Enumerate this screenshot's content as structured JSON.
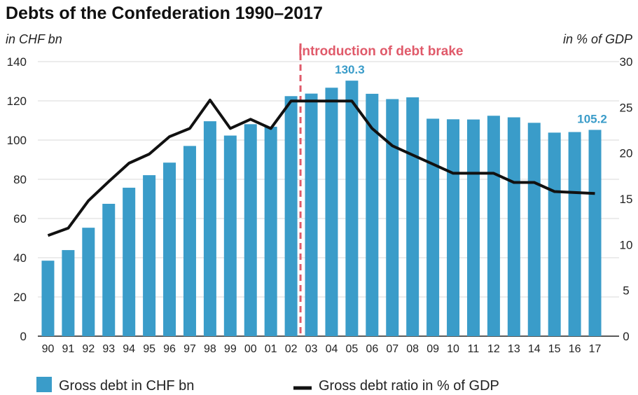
{
  "chart_data": {
    "type": "bar",
    "title": "Debts of the Confederation 1990–2017",
    "ylabel_left": "in CHF bn",
    "ylabel_right": "in % of GDP",
    "categories": [
      "90",
      "91",
      "92",
      "93",
      "94",
      "95",
      "96",
      "97",
      "98",
      "99",
      "00",
      "01",
      "02",
      "03",
      "04",
      "05",
      "06",
      "07",
      "08",
      "09",
      "10",
      "11",
      "12",
      "13",
      "14",
      "15",
      "16",
      "17"
    ],
    "ylim_left": [
      0,
      140
    ],
    "yticks_left": [
      "0",
      "20",
      "40",
      "60",
      "80",
      "100",
      "120",
      "140"
    ],
    "ylim_right": [
      0,
      30
    ],
    "yticks_right": [
      "0",
      "5",
      "10",
      "15",
      "20",
      "25",
      "30"
    ],
    "grid": true,
    "legend_position": "bottom",
    "series": [
      {
        "name": "Gross debt in CHF bn",
        "type": "bar",
        "axis": "left",
        "values": [
          38.5,
          43.9,
          55.3,
          67.5,
          75.7,
          82.1,
          88.5,
          97.0,
          109.6,
          102.3,
          108.1,
          106.8,
          122.4,
          123.7,
          126.7,
          130.3,
          123.6,
          120.9,
          121.8,
          110.9,
          110.6,
          110.5,
          112.4,
          111.6,
          108.8,
          103.8,
          104.1,
          105.2
        ]
      },
      {
        "name": "Gross debt ratio in % of GDP",
        "type": "line",
        "axis": "right",
        "values": [
          11.0,
          11.8,
          14.8,
          16.9,
          18.9,
          19.9,
          21.8,
          22.7,
          25.8,
          22.7,
          23.7,
          22.7,
          25.7,
          25.7,
          25.7,
          25.7,
          22.7,
          20.8,
          19.8,
          18.8,
          17.8,
          17.8,
          17.8,
          16.8,
          16.8,
          15.8,
          15.7,
          15.6
        ]
      }
    ],
    "annotations": {
      "debt_brake_label": "Introduction of debt brake",
      "debt_brake_year": "03",
      "label_2005": "130.3",
      "label_2017": "105.2"
    },
    "colors": {
      "bar": "#3a9cc9",
      "line": "#111111",
      "brake": "#e05a6a",
      "data_label": "#3a9cc9"
    }
  }
}
